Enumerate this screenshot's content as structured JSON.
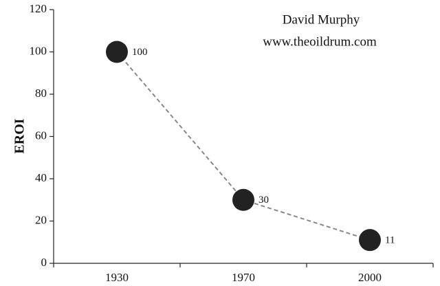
{
  "chart_data": {
    "type": "line",
    "ylabel": "EROI",
    "annotations": [
      "David Murphy",
      "www.theoildrum.com"
    ],
    "categories": [
      "1930",
      "1970",
      "2000"
    ],
    "values": [
      100,
      30,
      11
    ],
    "color": "#222222",
    "line_color": "#888888",
    "line_dash": true,
    "data_labels": true,
    "ylim": [
      0,
      120
    ],
    "yticks": [
      0,
      20,
      40,
      60,
      80,
      100,
      120
    ],
    "grid": false
  }
}
